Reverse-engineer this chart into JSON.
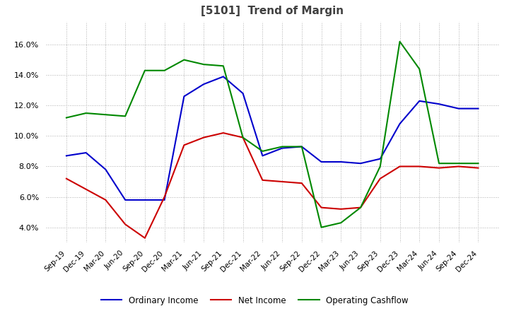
{
  "title": "[5101]  Trend of Margin",
  "title_color": "#404040",
  "title_fontsize": 11,
  "x_labels": [
    "Sep-19",
    "Dec-19",
    "Mar-20",
    "Jun-20",
    "Sep-20",
    "Dec-20",
    "Mar-21",
    "Jun-21",
    "Sep-21",
    "Dec-21",
    "Mar-22",
    "Jun-22",
    "Sep-22",
    "Dec-22",
    "Mar-23",
    "Jun-23",
    "Sep-23",
    "Dec-23",
    "Mar-24",
    "Jun-24",
    "Sep-24",
    "Dec-24"
  ],
  "ordinary_income": [
    8.7,
    8.9,
    7.8,
    5.8,
    5.8,
    5.8,
    12.6,
    13.4,
    13.9,
    12.8,
    8.7,
    9.2,
    9.3,
    8.3,
    8.3,
    8.2,
    8.5,
    10.8,
    12.3,
    12.1,
    11.8,
    11.8
  ],
  "net_income": [
    7.2,
    6.5,
    5.8,
    4.2,
    3.3,
    6.0,
    9.4,
    9.9,
    10.2,
    9.9,
    7.1,
    7.0,
    6.9,
    5.3,
    5.2,
    5.3,
    7.2,
    8.0,
    8.0,
    7.9
  ],
  "net_income_full": [
    7.2,
    6.5,
    5.8,
    4.2,
    3.3,
    6.0,
    9.4,
    9.9,
    10.2,
    9.9,
    7.1,
    7.0,
    6.9,
    5.3,
    5.2,
    5.3,
    7.2,
    8.0,
    8.0,
    7.9,
    8.0,
    7.9
  ],
  "operating_cashflow": [
    11.2,
    11.5,
    11.4,
    11.3,
    14.3,
    14.3,
    15.0,
    14.7,
    14.6,
    9.9,
    9.0,
    9.3,
    9.3,
    4.0,
    4.3,
    5.3,
    8.0,
    16.2,
    14.4,
    8.2,
    8.2,
    8.2
  ],
  "ordinary_income_color": "#0000cc",
  "net_income_color": "#cc0000",
  "operating_cashflow_color": "#008800",
  "ylim": [
    3.0,
    17.5
  ],
  "yticks": [
    4.0,
    6.0,
    8.0,
    10.0,
    12.0,
    14.0,
    16.0
  ],
  "grid_color": "#b0b0b0",
  "background_color": "#ffffff",
  "legend_labels": [
    "Ordinary Income",
    "Net Income",
    "Operating Cashflow"
  ]
}
